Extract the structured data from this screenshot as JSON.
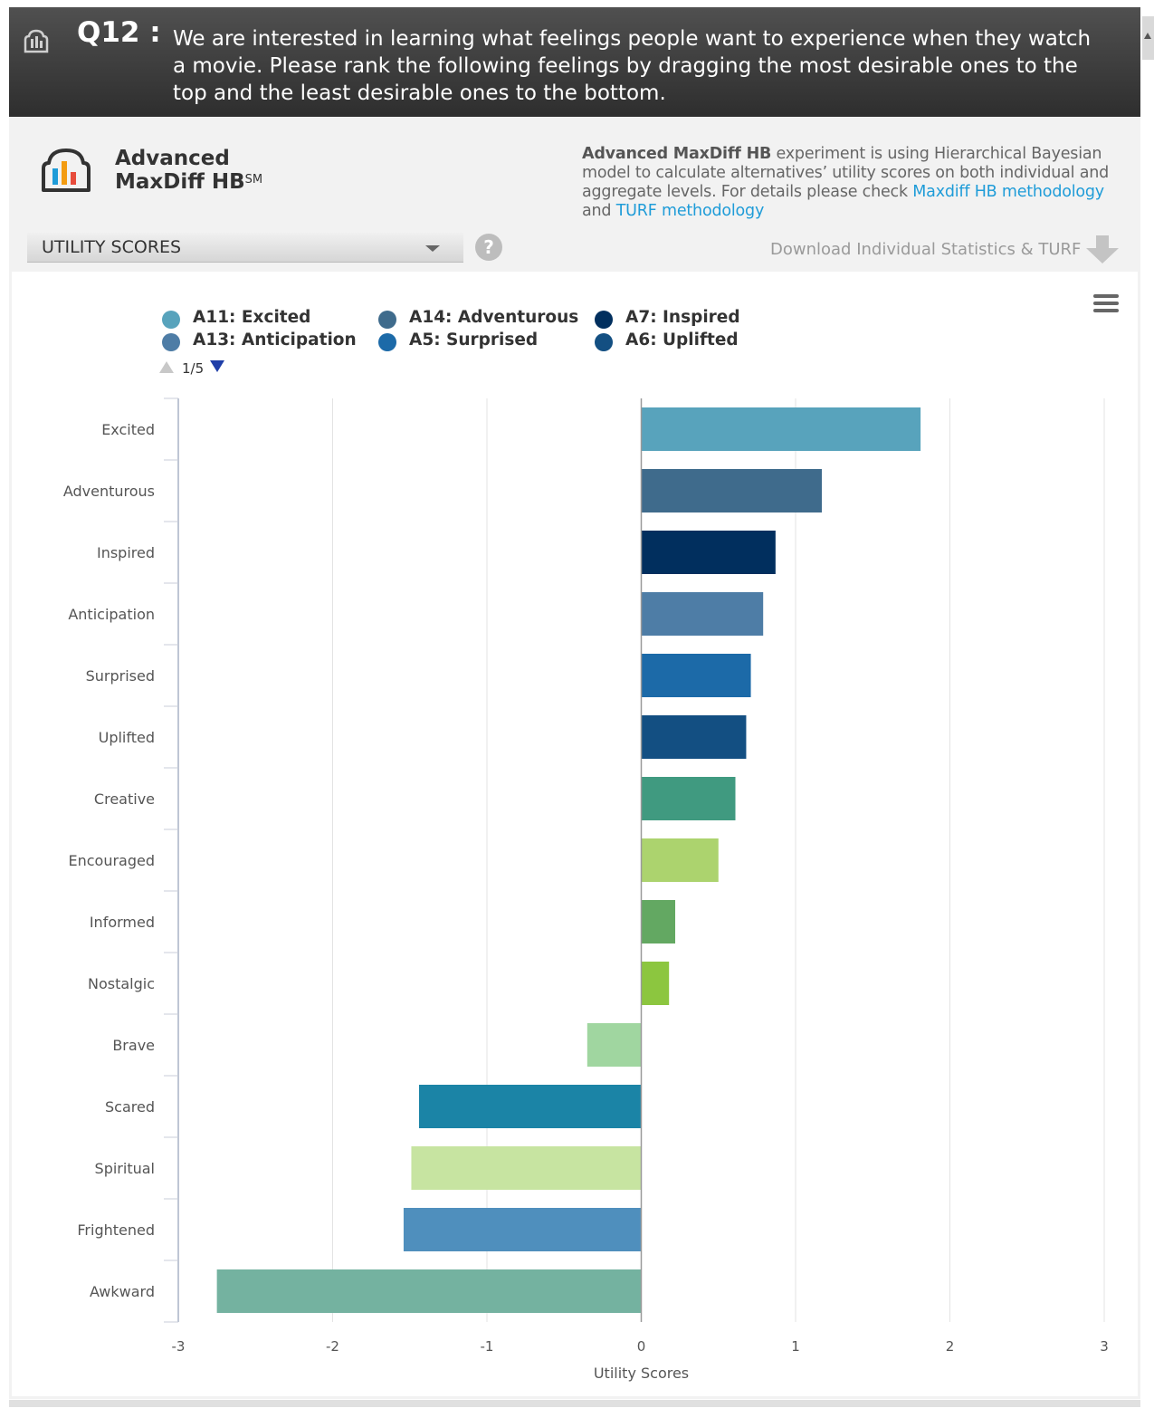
{
  "header": {
    "question_number": "Q12 :",
    "question_text": "We are interested in learning what feelings people want to experience when they watch a movie. Please rank the following feelings by dragging the most desirable ones to the top and the least desirable ones to the bottom."
  },
  "brand": {
    "line1": "Advanced",
    "line2": "MaxDiff HB",
    "superscript": "SM"
  },
  "description": {
    "bold": "Advanced MaxDiff HB",
    "text1": " experiment is using Hierarchical Bayesian model to calculate alternatives’ utility scores on both individual and aggregate levels. For details please check ",
    "link1": "Maxdiff HB methodology",
    "text2": " and ",
    "link2": "TURF methodology"
  },
  "controls": {
    "dropdown_value": "UTILITY SCORES",
    "help_symbol": "?",
    "download_label": "Download Individual Statistics & TURF"
  },
  "legend": {
    "items": [
      {
        "label": "A11: Excited",
        "color": "#58a3bc"
      },
      {
        "label": "A14: Adventurous",
        "color": "#3f6b8c"
      },
      {
        "label": "A7: Inspired",
        "color": "#012f5e"
      },
      {
        "label": "A13: Anticipation",
        "color": "#4e7da6"
      },
      {
        "label": "A5: Surprised",
        "color": "#1c6aa8"
      },
      {
        "label": "A6: Uplifted",
        "color": "#134f82"
      }
    ],
    "page": "1/5"
  },
  "chart_data": {
    "type": "bar",
    "orientation": "horizontal",
    "categories": [
      "Excited",
      "Adventurous",
      "Inspired",
      "Anticipation",
      "Surprised",
      "Uplifted",
      "Creative",
      "Encouraged",
      "Informed",
      "Nostalgic",
      "Brave",
      "Scared",
      "Spiritual",
      "Frightened",
      "Awkward"
    ],
    "values": [
      1.81,
      1.17,
      0.87,
      0.79,
      0.71,
      0.68,
      0.61,
      0.5,
      0.22,
      0.18,
      -0.35,
      -1.44,
      -1.49,
      -1.54,
      -2.75
    ],
    "colors": [
      "#58a3bc",
      "#3f6b8c",
      "#012f5e",
      "#4e7da6",
      "#1c6aa8",
      "#134f82",
      "#409a80",
      "#acd36e",
      "#63a862",
      "#8cc63f",
      "#a0d6a0",
      "#1b84a6",
      "#c7e4a1",
      "#4f8fbd",
      "#74b2a0"
    ],
    "xlabel": "Utility Scores",
    "xlim": [
      -3,
      3
    ],
    "xticks": [
      "-3",
      "-2",
      "-1",
      "0",
      "1",
      "2",
      "3"
    ],
    "grid": true
  }
}
